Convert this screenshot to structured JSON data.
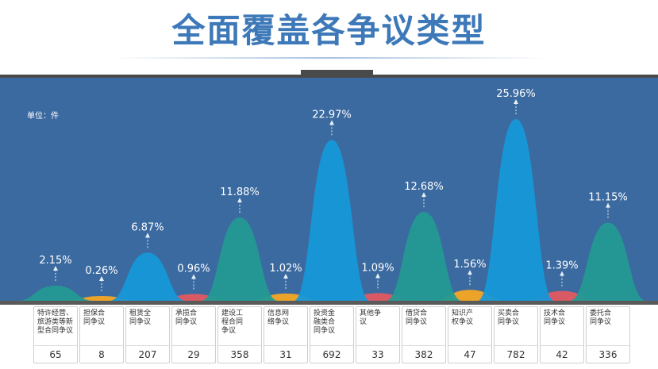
{
  "page": {
    "title": "全面覆盖各争议类型"
  },
  "chart_data": {
    "type": "area",
    "unit_label": "单位：件",
    "categories": [
      "特许经营、\n旅游类等新\n型合同争议",
      "担保合\n同争议",
      "租赁全\n同争议",
      "承揽合\n同争议",
      "建设工\n程合同\n争议",
      "信息网\n络争议",
      "投资金\n融类合\n同争议",
      "其他争\n议",
      "借贷合\n同争议",
      "知识产\n权争议",
      "买卖合\n同争议",
      "技术合\n同争议",
      "委托合\n同争议"
    ],
    "values": [
      65,
      8,
      207,
      29,
      358,
      31,
      692,
      33,
      382,
      47,
      782,
      42,
      336
    ],
    "percent_labels": [
      "2.15%",
      "0.26%",
      "6.87%",
      "0.96%",
      "11.88%",
      "1.02%",
      "22.97%",
      "1.09%",
      "12.68%",
      "1.56%",
      "25.96%",
      "1.39%",
      "11.15%"
    ],
    "ylim": [
      0,
      782
    ],
    "colors": [
      "#239a94",
      "#f5a623",
      "#1698d8",
      "#e05a62",
      "#239a94",
      "#f5a623",
      "#1698d8",
      "#e05a62",
      "#239a94",
      "#f5a623",
      "#1698d8",
      "#e05a62",
      "#239a94"
    ]
  }
}
